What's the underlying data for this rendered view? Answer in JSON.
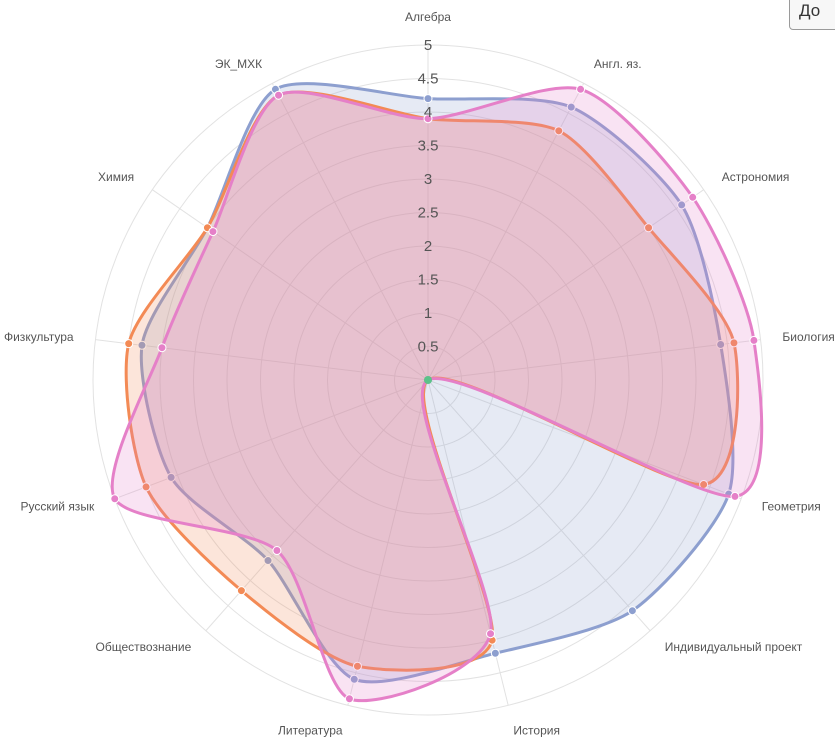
{
  "header": {
    "button_label": "До"
  },
  "colors": {
    "grid": "#e2e2e2",
    "blue": "#8d9fcf",
    "orange": "#f38a55",
    "pink": "#e580c8",
    "center_dot": "#5cc28a"
  },
  "chart_data": {
    "type": "radar",
    "title": "",
    "rlim": [
      0,
      5
    ],
    "ticks": [
      "0.5",
      "1",
      "1.5",
      "2",
      "2.5",
      "3",
      "3.5",
      "4",
      "4.5",
      "5"
    ],
    "grid": true,
    "legend": "none",
    "categories": [
      "Алгебра",
      "Англ. яз.",
      "Астрономия",
      "Биология",
      "Геометрия",
      "Индивидуальный проект",
      "История",
      "Литература",
      "Обществознание",
      "Русский язык",
      "Физкультура",
      "Химия",
      "ЭК_МХК"
    ],
    "series": [
      {
        "color_key": "blue",
        "values": [
          4.2,
          4.6,
          4.6,
          4.4,
          4.8,
          4.6,
          4.2,
          4.6,
          3.6,
          4.1,
          4.3,
          4.0,
          4.9
        ]
      },
      {
        "color_key": "orange",
        "values": [
          3.9,
          4.2,
          4.0,
          4.6,
          4.4,
          0.0,
          4.0,
          4.4,
          4.2,
          4.5,
          4.5,
          4.0,
          4.8
        ]
      },
      {
        "color_key": "pink",
        "values": [
          3.9,
          4.9,
          4.8,
          4.9,
          4.9,
          0.0,
          3.9,
          4.9,
          3.4,
          5.0,
          4.0,
          3.9,
          4.8
        ]
      }
    ]
  }
}
